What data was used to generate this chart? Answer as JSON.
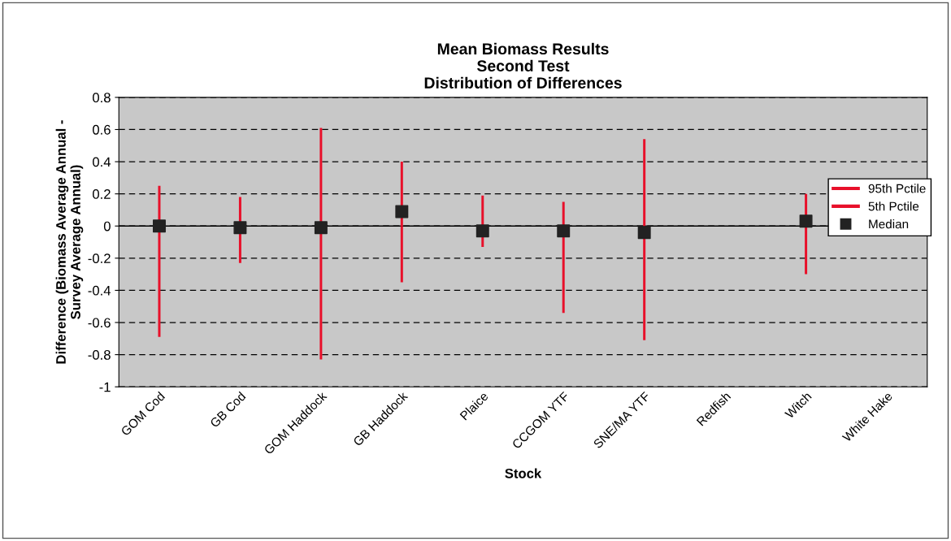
{
  "chart_data": {
    "type": "bar",
    "title": "Mean Biomass Results\nSecond Test\nDistribution of Differences",
    "xlabel": "Stock",
    "ylabel": "Difference (Biomass Average Annual -\nSurvey Average Annual)",
    "categories": [
      "GOM Cod",
      "GB Cod",
      "GOM Haddock",
      "GB Haddock",
      "Plaice",
      "CCGOM YTF",
      "SNE/MA YTF",
      "Redfish",
      "Witch",
      "White Hake"
    ],
    "series": [
      {
        "name": "95th Pctile",
        "color": "#e8102a",
        "values": [
          0.25,
          0.18,
          0.61,
          0.4,
          0.19,
          0.15,
          0.54,
          null,
          0.2,
          null
        ]
      },
      {
        "name": "5th Pctile",
        "color": "#e8102a",
        "values": [
          -0.69,
          -0.23,
          -0.83,
          -0.35,
          -0.13,
          -0.54,
          -0.71,
          null,
          -0.3,
          null
        ]
      },
      {
        "name": "Median",
        "type": "scatter",
        "marker": "square",
        "color": "#222222",
        "values": [
          0.0,
          -0.01,
          -0.01,
          0.09,
          -0.03,
          -0.03,
          -0.04,
          null,
          0.03,
          null
        ]
      }
    ],
    "ylim": [
      -1,
      0.8
    ],
    "yticks": [
      -1,
      -0.8,
      -0.6,
      -0.4,
      -0.2,
      0,
      0.2,
      0.4,
      0.6,
      0.8
    ],
    "stacked": true,
    "grid": "y",
    "legend": "right"
  }
}
